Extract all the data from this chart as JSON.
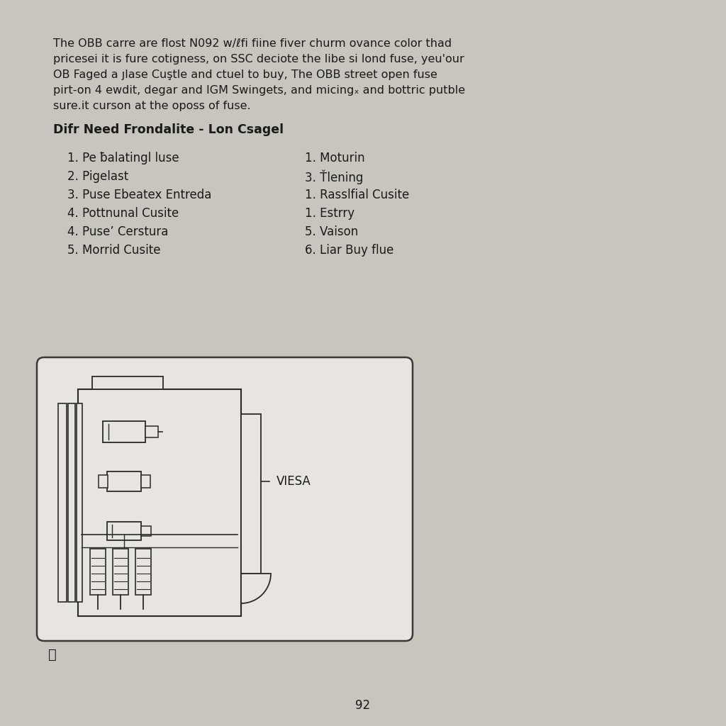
{
  "bg_color": "#c8c4be",
  "page_color": "#e8e5e0",
  "text_color": "#1a1a1a",
  "body_text_line1": "The OBB carre are flost N092 w/ℓfi fiine fiver churm ovance color thad",
  "body_text_line2": "pricesei it is fure cotigness, on SSC deciote the libe si lond fuse, yeu'our",
  "body_text_line3": "OB Faged a ȷlase Cuştle and ctuel to buy, The OBB street open fuse",
  "body_text_line4": "pirt-on 4 ewdit, degar and IGM Swingets, and micingₓ and bottric putble",
  "body_text_line5": "sure.it curson at the oposs of fuse.",
  "section_title": "Difr Need Frondalite - Lon Csagel",
  "left_list": [
    "1. Pe ƀalatingl luse",
    "2. Pigelast",
    "3. Puse Ebeatex Entreda",
    "4. Pottnunal Cusite",
    "4. Puseʼ Cerstura",
    "5. Morrid Cusite"
  ],
  "right_list": [
    "1. Moturin",
    "3. Ťlening",
    "1. Rasslfial Cusite",
    "1. Estrry",
    "5. Vaison",
    "6. Liar Buy flue"
  ],
  "diagram_label": "VIESA",
  "page_number": "92",
  "copyright_symbol": "ⓘ"
}
